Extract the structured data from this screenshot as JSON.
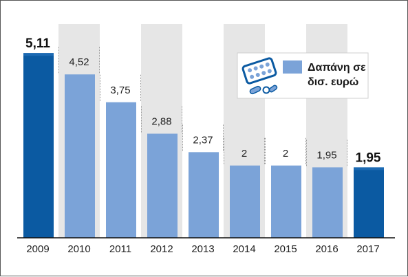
{
  "chart_data": {
    "type": "bar",
    "categories": [
      "2009",
      "2010",
      "2011",
      "2012",
      "2013",
      "2014",
      "2015",
      "2016",
      "2017"
    ],
    "values": [
      5.11,
      4.52,
      3.75,
      2.88,
      2.37,
      2,
      2,
      1.95,
      1.95
    ],
    "value_labels": [
      "5,11",
      "4,52",
      "3,75",
      "2,88",
      "2,37",
      "2",
      "2",
      "1,95",
      "1,95"
    ],
    "highlighted": [
      "2009",
      "2017"
    ],
    "series": [
      {
        "name": "Δαπάνη σε δισ. ευρώ",
        "values": [
          5.11,
          4.52,
          3.75,
          2.88,
          2.37,
          2,
          2,
          1.95,
          1.95
        ]
      }
    ],
    "title": "",
    "xlabel": "",
    "ylabel": "",
    "ylim": [
      0,
      5.5
    ],
    "grid": false,
    "legend": {
      "placement": "top-right",
      "line1": "Δαπάνη σε",
      "line2": "δισ. ευρώ",
      "icon": "pill-blister-icon"
    },
    "colors": {
      "bar_light": "#7ba3d8",
      "bar_dark": "#0b5aa2",
      "band": "#e6e6e6"
    }
  }
}
